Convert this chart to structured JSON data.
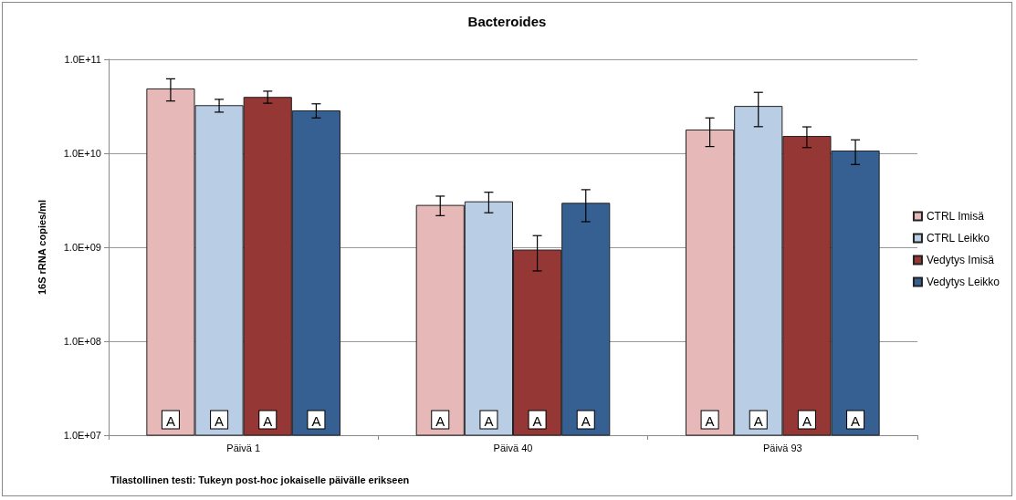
{
  "chart_data": {
    "type": "bar",
    "title": "Bacteroides",
    "ylabel": "16S rRNA copies/ml",
    "categories": [
      "Päivä 1",
      "Päivä 40",
      "Päivä 93"
    ],
    "series": [
      {
        "name": "CTRL Imisä",
        "color": "#e6b9b8",
        "values": [
          49000000000.0,
          2820000000.0,
          17900000000.0
        ],
        "errors": [
          [
            36000000000.0,
            62000000000.0
          ],
          [
            2170000000.0,
            3500000000.0
          ],
          [
            11800000000.0,
            23800000000.0
          ]
        ],
        "value_labels": [
          "A",
          "A",
          "A"
        ]
      },
      {
        "name": "CTRL Leikko",
        "color": "#b9cde5",
        "values": [
          32500000000.0,
          3080000000.0,
          31900000000.0
        ],
        "errors": [
          [
            27400000000.0,
            37500000000.0
          ],
          [
            2330000000.0,
            3850000000.0
          ],
          [
            19200000000.0,
            44500000000.0
          ]
        ],
        "value_labels": [
          "A",
          "A",
          "A"
        ]
      },
      {
        "name": "Vedytys Imisä",
        "color": "#953735",
        "values": [
          39800000000.0,
          945000000.0,
          15300000000.0
        ],
        "errors": [
          [
            34100000000.0,
            45800000000.0
          ],
          [
            560000000.0,
            1330000000.0
          ],
          [
            11500000000.0,
            19100000000.0
          ]
        ],
        "value_labels": [
          "A",
          "A",
          "A"
        ]
      },
      {
        "name": "Vedytys Leikko",
        "color": "#376092",
        "values": [
          28600000000.0,
          2970000000.0,
          10700000000.0
        ],
        "errors": [
          [
            23800000000.0,
            33600000000.0
          ],
          [
            1870000000.0,
            4100000000.0
          ],
          [
            7600000000.0,
            13900000000.0
          ]
        ],
        "value_labels": [
          "A",
          "A",
          "A"
        ]
      }
    ],
    "ylim": [
      10000000.0,
      100000000000.0
    ],
    "yticks": [
      {
        "value": 10000000.0,
        "label": "1.0E+07"
      },
      {
        "value": 100000000.0,
        "label": "1.0E+08"
      },
      {
        "value": 1000000000.0,
        "label": "1.0E+09"
      },
      {
        "value": 10000000000.0,
        "label": "1.0E+10"
      },
      {
        "value": 100000000000.0,
        "label": "1.0E+11"
      }
    ],
    "log": "y",
    "grid": "y",
    "legend": "right",
    "annotations": [
      "Tilastollinen testi: Tukeyn post-hoc jokaiselle päivälle erikseen"
    ]
  }
}
